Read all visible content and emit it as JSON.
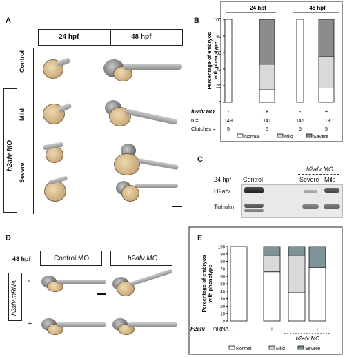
{
  "panels": {
    "A": {
      "letter": "A",
      "col_24": "24 hpf",
      "col_48": "48 hpf",
      "row_control": "Control",
      "row_mild": "Mild",
      "row_severe": "Severe",
      "side_label": "h2afv MO"
    },
    "B": {
      "letter": "B",
      "group_24": "24 hpf",
      "group_48": "48 hpf",
      "mo_label": "h2afv MO",
      "n_label": "n =",
      "clutches_label": "Clutches ="
    },
    "C": {
      "letter": "C",
      "time": "24 hpf",
      "control": "Control",
      "mo_label": "h2afv MO",
      "severe": "Severe",
      "mild": "Mild",
      "row_h2afv": "H2afv",
      "row_tubulin": "Tubulin"
    },
    "D": {
      "letter": "D",
      "time": "48 hpf",
      "control_mo": "Control MO",
      "h2afv_mo": "h2afv MO",
      "mrna_label": "h2afv mRNA",
      "minus": "-",
      "plus": "+"
    },
    "E": {
      "letter": "E",
      "mrna_label": "mRNA",
      "gene": "h2afv",
      "mo_label": "h2afv MO"
    }
  },
  "legend": {
    "normal": "Normal",
    "mild": "Mild",
    "severe": "Severe"
  },
  "colors": {
    "normal": "#ffffff",
    "mild": "#d9d9d9",
    "severe": "#8c8c8c",
    "severe_E": "#7e9397"
  },
  "chart_data": [
    {
      "id": "B",
      "type": "bar",
      "stacked": true,
      "ylabel": "Percentage of embryos with phenotype",
      "ylim": [
        0,
        100
      ],
      "yticks": [
        0,
        20,
        40,
        60,
        80,
        100
      ],
      "categories": [
        "24-",
        "24+",
        "48-",
        "48+"
      ],
      "mo": [
        "-",
        "+",
        "-",
        "+"
      ],
      "n": [
        "149",
        "141",
        "145",
        "118"
      ],
      "clutches": [
        "5",
        "5",
        "5",
        "5"
      ],
      "series": [
        {
          "name": "Normal",
          "values": [
            100,
            15,
            100,
            17
          ]
        },
        {
          "name": "Mild",
          "values": [
            0,
            31,
            0,
            38
          ]
        },
        {
          "name": "Severe",
          "values": [
            0,
            54,
            0,
            45
          ]
        }
      ]
    },
    {
      "id": "E",
      "type": "bar",
      "stacked": true,
      "ylabel": "Percentage of embryos with phenotype",
      "ylim": [
        0,
        100
      ],
      "yticks": [
        0,
        10,
        20,
        30,
        40,
        50,
        60,
        70,
        80,
        90,
        100
      ],
      "categories": [
        "--",
        "-+",
        "+-",
        "++"
      ],
      "mrna": [
        "-",
        "+",
        "-",
        "+"
      ],
      "series": [
        {
          "name": "Normal",
          "values": [
            100,
            66,
            38,
            72
          ]
        },
        {
          "name": "Mild",
          "values": [
            0,
            22,
            50,
            0
          ]
        },
        {
          "name": "Severe",
          "values": [
            0,
            12,
            12,
            28
          ]
        }
      ]
    }
  ]
}
